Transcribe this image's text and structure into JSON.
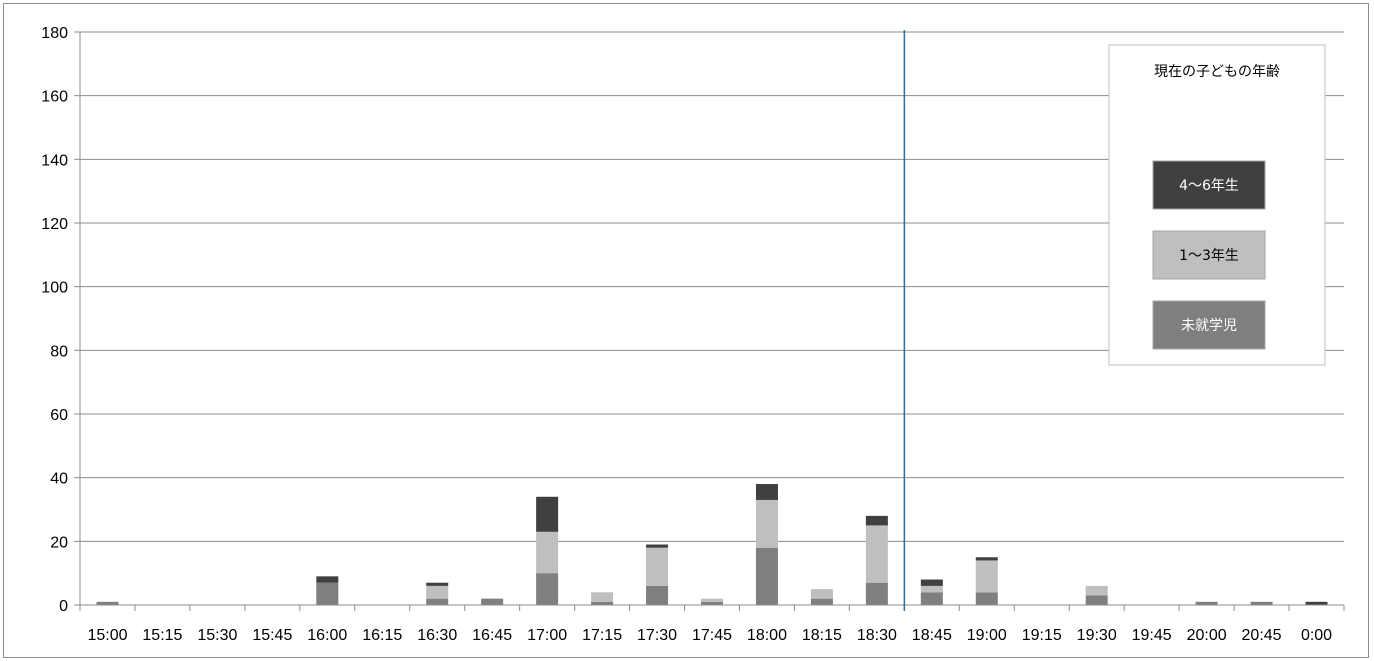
{
  "chart_data": {
    "type": "bar",
    "stacked": true,
    "categories": [
      "15:00",
      "15:15",
      "15:30",
      "15:45",
      "16:00",
      "16:15",
      "16:30",
      "16:45",
      "17:00",
      "17:15",
      "17:30",
      "17:45",
      "18:00",
      "18:15",
      "18:30",
      "18:45",
      "19:00",
      "19:15",
      "19:30",
      "19:45",
      "20:00",
      "20:45",
      "0:00"
    ],
    "series": [
      {
        "name": "未就学児",
        "color": "#7f7f7f",
        "values": [
          1,
          0,
          0,
          0,
          7,
          0,
          2,
          2,
          10,
          1,
          6,
          1,
          18,
          2,
          7,
          4,
          4,
          0,
          3,
          0,
          1,
          1,
          0
        ]
      },
      {
        "name": "1〜3年生",
        "color": "#bfbfbf",
        "values": [
          0,
          0,
          0,
          0,
          0,
          0,
          4,
          0,
          13,
          3,
          12,
          1,
          15,
          3,
          18,
          2,
          10,
          0,
          3,
          0,
          0,
          0,
          0
        ]
      },
      {
        "name": "4〜6年生",
        "color": "#404040",
        "values": [
          0,
          0,
          0,
          0,
          2,
          0,
          1,
          0,
          11,
          0,
          1,
          0,
          5,
          0,
          3,
          2,
          1,
          0,
          0,
          0,
          0,
          0,
          1
        ]
      }
    ],
    "ylim": [
      0,
      180
    ],
    "yticks": [
      0,
      20,
      40,
      60,
      80,
      100,
      120,
      140,
      160,
      180
    ],
    "grid": true,
    "legend_title": "現在の子どもの年齢",
    "legend_position": "top-right",
    "reference_line": {
      "between": [
        "18:30",
        "18:45"
      ],
      "color": "#2e6da4"
    }
  }
}
